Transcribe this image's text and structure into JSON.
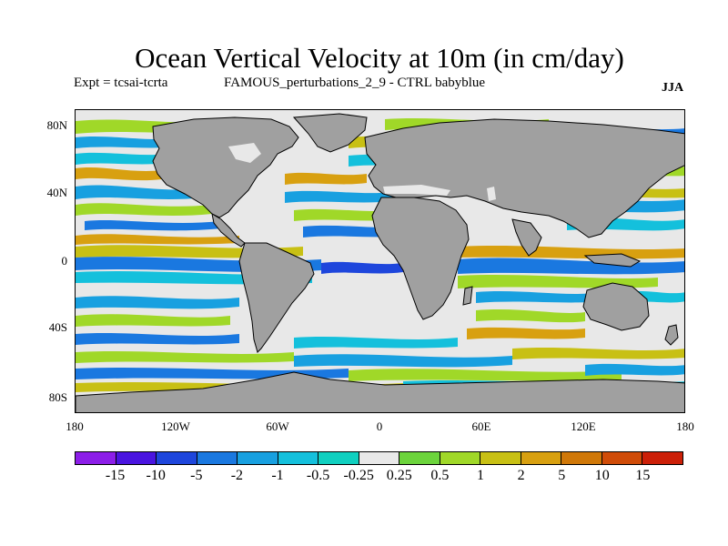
{
  "title": "Ocean Vertical Velocity at 10m (in cm/day)",
  "experiment": "Expt = tcsai-tcrta",
  "perturbation": "FAMOUS_perturbations_2_9 - CTRL babyblue",
  "season": "JJA",
  "lat_ticks": [
    "80N",
    "40N",
    "0",
    "40S",
    "80S"
  ],
  "lon_ticks": [
    "180",
    "120W",
    "60W",
    "0",
    "60E",
    "120E",
    "180"
  ],
  "colorbar": {
    "colors": [
      "#8c1ee8",
      "#4a14e0",
      "#1e46dc",
      "#1a78e0",
      "#18a0e0",
      "#14c0dc",
      "#10d0c0",
      "#e8e8e8",
      "#6cd43c",
      "#a0d828",
      "#c8c014",
      "#d8a010",
      "#d07808",
      "#d04c08",
      "#cc2008"
    ],
    "labels": [
      "-15",
      "-10",
      "-5",
      "-2",
      "-1",
      "-0.5",
      "-0.25",
      "0.25",
      "0.5",
      "1",
      "2",
      "5",
      "10",
      "15"
    ]
  },
  "colors": {
    "land": "#a0a0a0",
    "neutral": "#e8e8e8",
    "coast": "#000000"
  }
}
